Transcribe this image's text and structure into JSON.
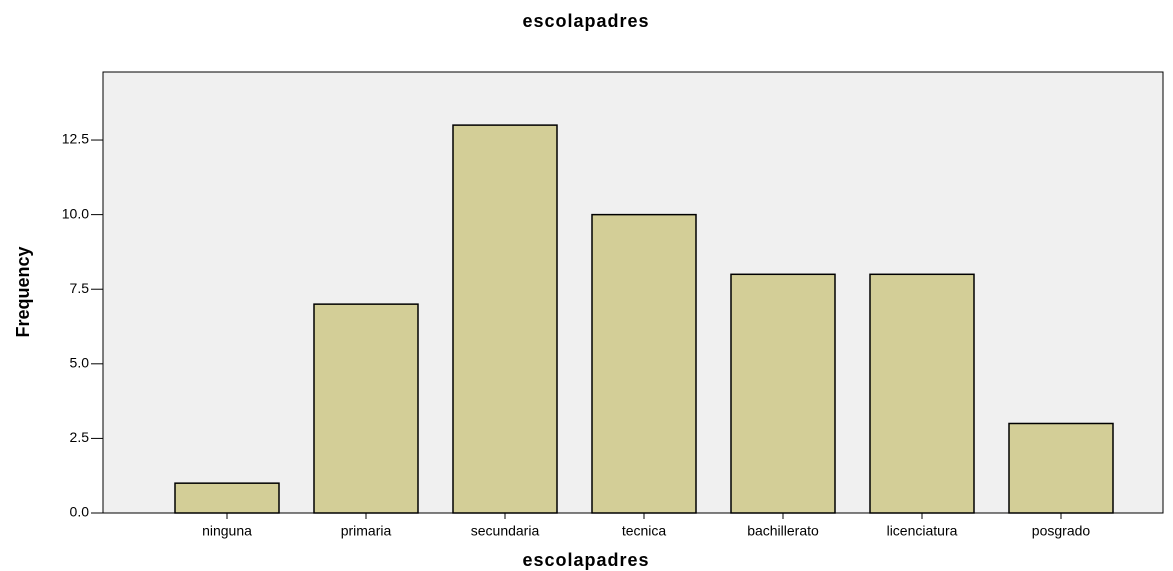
{
  "chart_data": {
    "type": "bar",
    "title": "escolapadres",
    "x_label": "escolapadres",
    "y_label": "Frequency",
    "categories": [
      "ninguna",
      "primaria",
      "secundaria",
      "tecnica",
      "bachillerato",
      "licenciatura",
      "posgrado"
    ],
    "values": [
      1,
      7,
      13,
      10,
      8,
      8,
      3
    ],
    "color": "#d3ce97",
    "ylim": [
      0,
      14.78
    ],
    "yticks": [
      {
        "value": 0,
        "label": "0.0"
      },
      2.5,
      {
        "value": 5,
        "label": "5.0"
      },
      7.5,
      {
        "value": 10,
        "label": "10.0"
      },
      12.5
    ]
  }
}
